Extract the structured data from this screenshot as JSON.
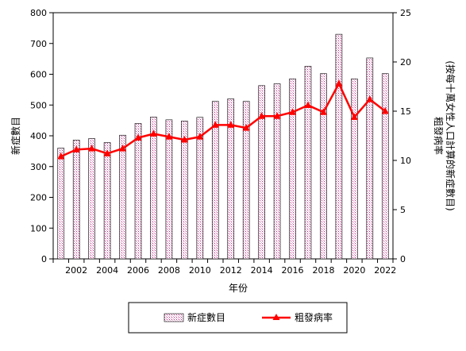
{
  "chart_data": {
    "type": "bar+line",
    "x": [
      2001,
      2002,
      2003,
      2004,
      2005,
      2006,
      2007,
      2008,
      2009,
      2010,
      2011,
      2012,
      2013,
      2014,
      2015,
      2016,
      2017,
      2018,
      2019,
      2020,
      2021,
      2022
    ],
    "x_tick_labels": [
      "2002",
      "2004",
      "2006",
      "2008",
      "2010",
      "2012",
      "2014",
      "2016",
      "2018",
      "2020",
      "2022"
    ],
    "xlabel": "年份",
    "ylabel_left": "新症數目",
    "ylabel_right_line1": "粗發病率",
    "ylabel_right_line2": "(按每十萬女性人口計算的新症數目)",
    "ylim_left": [
      0,
      800
    ],
    "yticks_left": [
      "0",
      "100",
      "200",
      "300",
      "400",
      "500",
      "600",
      "700",
      "800"
    ],
    "ylim_right": [
      0,
      25
    ],
    "yticks_right": [
      "0",
      "5",
      "10",
      "15",
      "20",
      "25"
    ],
    "series": [
      {
        "name": "新症數目",
        "kind": "bar",
        "axis": "left",
        "color": "#e6b3d9",
        "values": [
          360,
          386,
          391,
          378,
          402,
          440,
          461,
          452,
          448,
          460,
          512,
          520,
          512,
          563,
          569,
          585,
          626,
          602,
          730,
          585,
          653,
          602
        ]
      },
      {
        "name": "粗發病率",
        "kind": "line",
        "axis": "right",
        "color": "#ff0000",
        "values": [
          10.4,
          11.1,
          11.2,
          10.7,
          11.2,
          12.3,
          12.7,
          12.4,
          12.1,
          12.4,
          13.6,
          13.6,
          13.3,
          14.5,
          14.5,
          14.9,
          15.6,
          14.9,
          17.8,
          14.4,
          16.2,
          15.0
        ]
      }
    ],
    "legend": {
      "placement": "bottom",
      "entries": [
        "新症數目",
        "粗發病率"
      ]
    },
    "grid": false
  }
}
